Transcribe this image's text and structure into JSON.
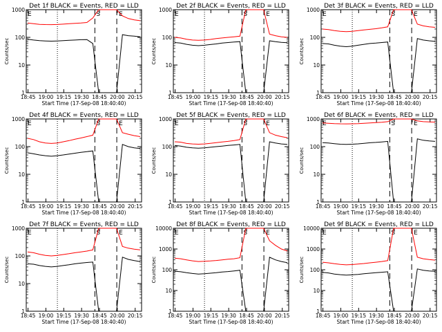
{
  "chart_data": [
    {
      "type": "line",
      "title": "Det 1f BLACK = Events, RED = LLD",
      "xlabel": "Start Time (17-Sep-08 18:40:40)",
      "ylabel": "Counts/sec",
      "y_scale": "log",
      "ylim": [
        1,
        1000
      ],
      "y_ticks": [
        "1",
        "10",
        "100",
        "1000"
      ],
      "x_ticks": [
        "18:45",
        "19:00",
        "19:15",
        "19:30",
        "18:45",
        "20:00",
        "20:15"
      ],
      "marks": [
        "E",
        "S",
        "E"
      ],
      "series": [
        {
          "color": "#000000",
          "values": [
            85,
            80,
            76,
            74,
            73,
            74,
            76,
            78,
            80,
            82,
            83,
            60,
            0,
            0,
            0,
            0,
            125,
            115,
            110,
            105
          ]
        },
        {
          "color": "#ff0000",
          "values": [
            330,
            310,
            295,
            290,
            288,
            292,
            300,
            310,
            320,
            330,
            345,
            500,
            1000,
            1000,
            1000,
            1000,
            600,
            480,
            430,
            400
          ]
        }
      ]
    },
    {
      "type": "line",
      "title": "Det 2f BLACK = Events, RED = LLD",
      "xlabel": "Start Time (17-Sep-08 18:40:40)",
      "ylabel": "Counts/sec",
      "y_scale": "log",
      "ylim": [
        1,
        1000
      ],
      "y_ticks": [
        "1",
        "10",
        "100",
        "1000"
      ],
      "x_ticks": [
        "18:45",
        "19:00",
        "19:15",
        "19:30",
        "18:45",
        "20:00",
        "20:15"
      ],
      "marks": [
        "E",
        "S",
        "E"
      ],
      "series": [
        {
          "color": "#000000",
          "values": [
            65,
            62,
            56,
            52,
            50,
            52,
            55,
            58,
            62,
            65,
            68,
            70,
            0,
            0,
            0,
            0,
            75,
            70,
            66,
            64
          ]
        },
        {
          "color": "#ff0000",
          "values": [
            100,
            95,
            85,
            80,
            78,
            80,
            84,
            90,
            95,
            100,
            105,
            110,
            1000,
            1000,
            1000,
            1000,
            130,
            115,
            105,
            100
          ]
        }
      ]
    },
    {
      "type": "line",
      "title": "Det 3f BLACK = Events, RED = LLD",
      "xlabel": "Start Time (17-Sep-08 18:40:40)",
      "ylabel": "Counts/sec",
      "y_scale": "log",
      "ylim": [
        1,
        1000
      ],
      "y_ticks": [
        "1",
        "10",
        "100",
        "1000"
      ],
      "x_ticks": [
        "18:45",
        "19:00",
        "19:15",
        "19:30",
        "18:45",
        "20:00",
        "20:15"
      ],
      "marks": [
        "E",
        "S",
        "E"
      ],
      "series": [
        {
          "color": "#000000",
          "values": [
            60,
            58,
            52,
            48,
            46,
            48,
            52,
            56,
            60,
            62,
            65,
            68,
            0,
            0,
            0,
            0,
            90,
            80,
            75,
            72
          ]
        },
        {
          "color": "#ff0000",
          "values": [
            200,
            190,
            175,
            165,
            160,
            165,
            175,
            185,
            195,
            205,
            220,
            240,
            1000,
            1000,
            1000,
            1000,
            300,
            260,
            240,
            230
          ]
        }
      ]
    },
    {
      "type": "line",
      "title": "Det 4f BLACK = Events, RED = LLD",
      "xlabel": "Start Time (17-Sep-08 18:40:40)",
      "ylabel": "Counts/sec",
      "y_scale": "log",
      "ylim": [
        1,
        1000
      ],
      "y_ticks": [
        "1",
        "10",
        "100",
        "1000"
      ],
      "x_ticks": [
        "18:45",
        "19:00",
        "19:15",
        "19:30",
        "18:45",
        "20:00",
        "20:15"
      ],
      "marks": [
        "E",
        "S",
        "E"
      ],
      "series": [
        {
          "color": "#000000",
          "values": [
            60,
            55,
            50,
            47,
            45,
            47,
            50,
            54,
            58,
            62,
            66,
            70,
            0,
            0,
            0,
            0,
            120,
            100,
            90,
            85
          ]
        },
        {
          "color": "#ff0000",
          "values": [
            200,
            180,
            150,
            135,
            130,
            135,
            150,
            165,
            185,
            205,
            230,
            260,
            1000,
            1000,
            1000,
            1000,
            320,
            280,
            250,
            230
          ]
        }
      ]
    },
    {
      "type": "line",
      "title": "Det 5f BLACK = Events, RED = LLD",
      "xlabel": "Start Time (17-Sep-08 18:40:40)",
      "ylabel": "Counts/sec",
      "y_scale": "log",
      "ylim": [
        1,
        1000
      ],
      "y_ticks": [
        "1",
        "10",
        "100",
        "1000"
      ],
      "x_ticks": [
        "18:45",
        "19:00",
        "19:15",
        "19:30",
        "18:45",
        "20:00",
        "20:15"
      ],
      "marks": [
        "E",
        "S",
        "E"
      ],
      "series": [
        {
          "color": "#000000",
          "values": [
            110,
            105,
            95,
            90,
            88,
            90,
            95,
            100,
            105,
            110,
            115,
            120,
            0,
            0,
            0,
            0,
            150,
            135,
            125,
            120
          ]
        },
        {
          "color": "#ff0000",
          "values": [
            150,
            145,
            130,
            125,
            122,
            125,
            132,
            140,
            148,
            155,
            165,
            180,
            1000,
            1000,
            1000,
            1000,
            320,
            260,
            230,
            210
          ]
        }
      ]
    },
    {
      "type": "line",
      "title": "Det 6f BLACK = Events, RED = LLD",
      "xlabel": "Start Time (17-Sep-08 18:40:40)",
      "ylabel": "Counts/sec",
      "y_scale": "log",
      "ylim": [
        1,
        1000
      ],
      "y_ticks": [
        "1",
        "10",
        "100",
        "1000"
      ],
      "x_ticks": [
        "18:45",
        "19:00",
        "19:15",
        "19:30",
        "18:45",
        "20:00",
        "20:15"
      ],
      "marks": [
        "E",
        "S",
        "E"
      ],
      "series": [
        {
          "color": "#000000",
          "values": [
            140,
            135,
            128,
            122,
            120,
            122,
            126,
            132,
            138,
            142,
            148,
            155,
            0,
            0,
            0,
            0,
            190,
            170,
            160,
            155
          ]
        },
        {
          "color": "#ff0000",
          "values": [
            720,
            700,
            680,
            670,
            665,
            670,
            680,
            700,
            720,
            740,
            760,
            800,
            1000,
            1000,
            1000,
            1000,
            850,
            800,
            780,
            770
          ]
        }
      ]
    },
    {
      "type": "line",
      "title": "Det 7f BLACK = Events, RED = LLD",
      "xlabel": "Start Time (17-Sep-08 18:40:40)",
      "ylabel": "Counts/sec",
      "y_scale": "log",
      "ylim": [
        1,
        1000
      ],
      "y_ticks": [
        "1",
        "10",
        "100",
        "1000"
      ],
      "x_ticks": [
        "18:45",
        "19:00",
        "19:15",
        "19:30",
        "18:45",
        "20:00",
        "20:15"
      ],
      "marks": [
        "E",
        "S",
        "E"
      ],
      "series": [
        {
          "color": "#000000",
          "values": [
            52,
            50,
            45,
            42,
            40,
            42,
            45,
            48,
            52,
            55,
            58,
            60,
            0,
            0,
            0,
            0,
            90,
            75,
            68,
            62
          ]
        },
        {
          "color": "#ff0000",
          "values": [
            140,
            130,
            115,
            105,
            100,
            105,
            112,
            120,
            130,
            140,
            150,
            165,
            1000,
            1000,
            1000,
            1000,
            220,
            190,
            175,
            165
          ]
        }
      ]
    },
    {
      "type": "line",
      "title": "Det 8f BLACK = Events, RED = LLD",
      "xlabel": "Start Time (17-Sep-08 18:40:40)",
      "ylabel": "Counts/sec",
      "y_scale": "log",
      "ylim": [
        1,
        10000
      ],
      "y_ticks": [
        "1",
        "10",
        "100",
        "1000",
        "10000"
      ],
      "x_ticks": [
        "18:45",
        "19:00",
        "19:15",
        "19:30",
        "18:45",
        "20:00",
        "20:15"
      ],
      "marks": [
        "E",
        "S",
        "E"
      ],
      "series": [
        {
          "color": "#000000",
          "values": [
            85,
            80,
            72,
            66,
            62,
            64,
            68,
            72,
            78,
            82,
            88,
            95,
            0,
            0,
            0,
            0,
            400,
            300,
            250,
            220
          ]
        },
        {
          "color": "#ff0000",
          "values": [
            360,
            340,
            300,
            270,
            250,
            255,
            265,
            280,
            300,
            320,
            340,
            380,
            10000,
            10000,
            10000,
            10000,
            2500,
            1500,
            1000,
            800
          ]
        }
      ]
    },
    {
      "type": "line",
      "title": "Det 9f BLACK = Events, RED = LLD",
      "xlabel": "Start Time (17-Sep-08 18:40:40)",
      "ylabel": "Counts/sec",
      "y_scale": "log",
      "ylim": [
        1,
        10000
      ],
      "y_ticks": [
        "1",
        "10",
        "100",
        "1000",
        "10000"
      ],
      "x_ticks": [
        "18:45",
        "19:00",
        "19:15",
        "19:30",
        "18:45",
        "20:00",
        "20:15"
      ],
      "marks": [
        "E",
        "S",
        "E"
      ],
      "series": [
        {
          "color": "#000000",
          "values": [
            75,
            70,
            62,
            58,
            55,
            57,
            60,
            64,
            68,
            72,
            76,
            80,
            0,
            0,
            0,
            0,
            110,
            95,
            88,
            84
          ]
        },
        {
          "color": "#ff0000",
          "values": [
            230,
            215,
            195,
            180,
            172,
            178,
            188,
            200,
            215,
            230,
            250,
            275,
            10000,
            10000,
            10000,
            10000,
            400,
            340,
            310,
            290
          ]
        }
      ]
    }
  ]
}
